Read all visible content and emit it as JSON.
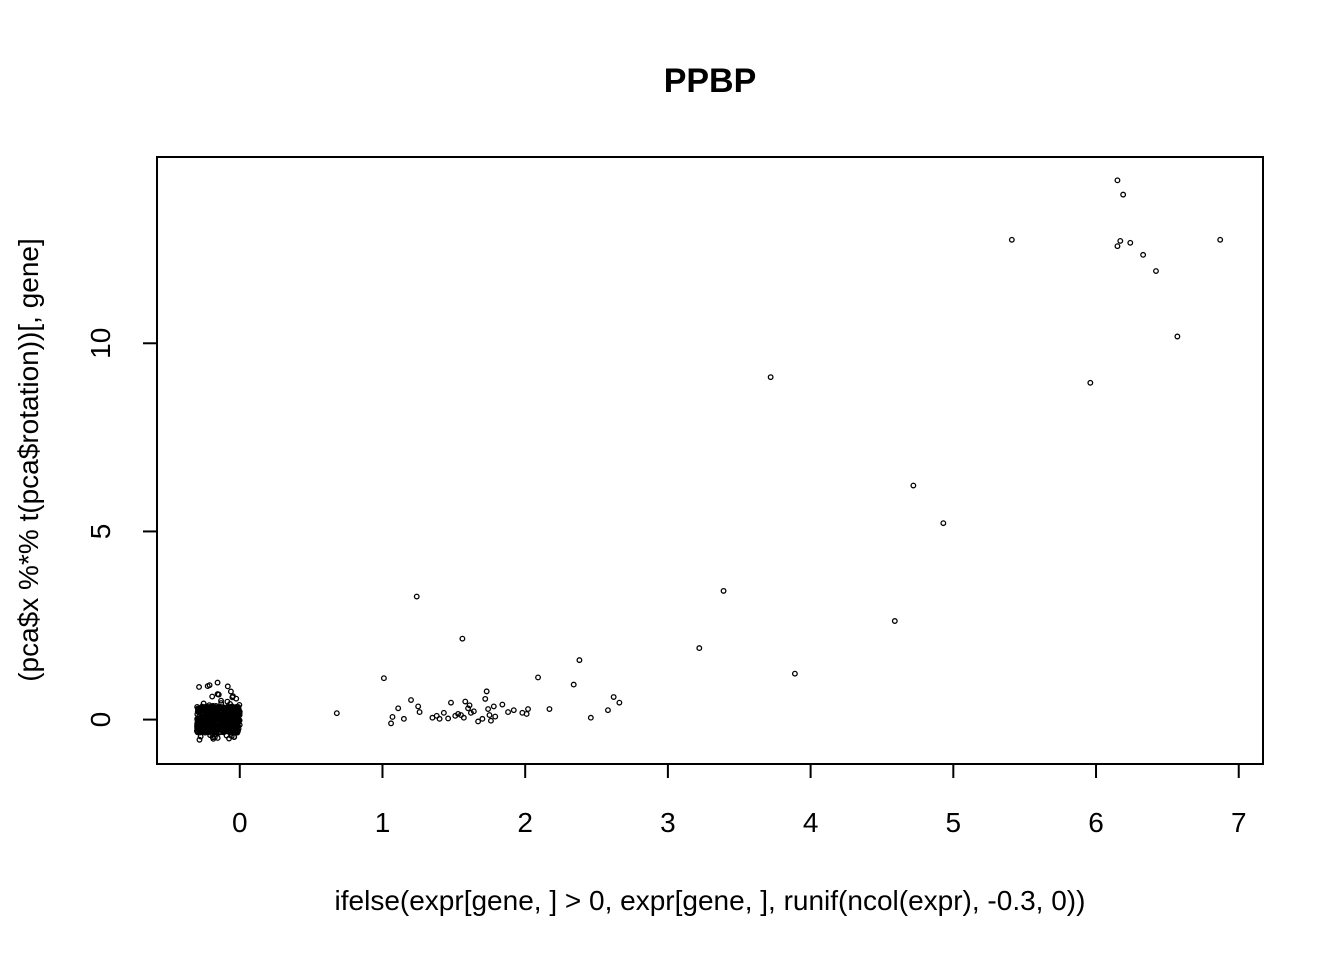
{
  "chart_data": {
    "type": "scatter",
    "title": "PPBP",
    "xlabel": "ifelse(expr[gene, ] > 0, expr[gene, ], runif(ncol(expr), -0.3, 0))",
    "ylabel": "(pca$x %*% t(pca$rotation))[, gene]",
    "xlim": [
      -0.58,
      7.17
    ],
    "ylim": [
      -1.18,
      14.95
    ],
    "x_ticks": [
      "0",
      "1",
      "2",
      "3",
      "4",
      "5",
      "6",
      "7"
    ],
    "y_ticks": [
      "0",
      "5",
      "10"
    ],
    "grid": false,
    "legend": "none",
    "point_style": "open-circle",
    "point_color": "#000000",
    "cluster_near_zero": {
      "x_range": [
        -0.3,
        0
      ],
      "y_range": [
        -0.55,
        1.0
      ],
      "approx_count": 600
    },
    "points": [
      {
        "x": 0.68,
        "y": 0.17
      },
      {
        "x": 1.01,
        "y": 1.1
      },
      {
        "x": 1.06,
        "y": -0.1
      },
      {
        "x": 1.07,
        "y": 0.07
      },
      {
        "x": 1.11,
        "y": 0.3
      },
      {
        "x": 1.15,
        "y": 0.02
      },
      {
        "x": 1.2,
        "y": 0.52
      },
      {
        "x": 1.24,
        "y": 3.27
      },
      {
        "x": 1.25,
        "y": 0.35
      },
      {
        "x": 1.26,
        "y": 0.2
      },
      {
        "x": 1.35,
        "y": 0.05
      },
      {
        "x": 1.38,
        "y": 0.1
      },
      {
        "x": 1.4,
        "y": 0.02
      },
      {
        "x": 1.43,
        "y": 0.18
      },
      {
        "x": 1.46,
        "y": 0.03
      },
      {
        "x": 1.48,
        "y": 0.45
      },
      {
        "x": 1.51,
        "y": 0.1
      },
      {
        "x": 1.53,
        "y": 0.15
      },
      {
        "x": 1.55,
        "y": 0.12
      },
      {
        "x": 1.56,
        "y": 2.15
      },
      {
        "x": 1.57,
        "y": 0.05
      },
      {
        "x": 1.58,
        "y": 0.48
      },
      {
        "x": 1.6,
        "y": 0.3
      },
      {
        "x": 1.61,
        "y": 0.38
      },
      {
        "x": 1.62,
        "y": 0.18
      },
      {
        "x": 1.64,
        "y": 0.22
      },
      {
        "x": 1.67,
        "y": -0.05
      },
      {
        "x": 1.7,
        "y": 0.02
      },
      {
        "x": 1.72,
        "y": 0.55
      },
      {
        "x": 1.73,
        "y": 0.75
      },
      {
        "x": 1.74,
        "y": 0.28
      },
      {
        "x": 1.75,
        "y": 0.12
      },
      {
        "x": 1.76,
        "y": -0.03
      },
      {
        "x": 1.78,
        "y": 0.35
      },
      {
        "x": 1.79,
        "y": 0.08
      },
      {
        "x": 1.84,
        "y": 0.4
      },
      {
        "x": 1.88,
        "y": 0.2
      },
      {
        "x": 1.92,
        "y": 0.25
      },
      {
        "x": 1.98,
        "y": 0.18
      },
      {
        "x": 2.01,
        "y": 0.15
      },
      {
        "x": 2.02,
        "y": 0.28
      },
      {
        "x": 2.09,
        "y": 1.12
      },
      {
        "x": 2.17,
        "y": 0.28
      },
      {
        "x": 2.34,
        "y": 0.93
      },
      {
        "x": 2.38,
        "y": 1.58
      },
      {
        "x": 2.46,
        "y": 0.05
      },
      {
        "x": 2.58,
        "y": 0.25
      },
      {
        "x": 2.62,
        "y": 0.6
      },
      {
        "x": 2.66,
        "y": 0.45
      },
      {
        "x": 3.22,
        "y": 1.9
      },
      {
        "x": 3.39,
        "y": 3.42
      },
      {
        "x": 3.72,
        "y": 9.1
      },
      {
        "x": 3.89,
        "y": 1.22
      },
      {
        "x": 4.59,
        "y": 2.62
      },
      {
        "x": 4.72,
        "y": 6.22
      },
      {
        "x": 4.93,
        "y": 5.22
      },
      {
        "x": 5.41,
        "y": 12.75
      },
      {
        "x": 5.96,
        "y": 8.95
      },
      {
        "x": 6.15,
        "y": 12.58
      },
      {
        "x": 6.15,
        "y": 14.33
      },
      {
        "x": 6.17,
        "y": 12.72
      },
      {
        "x": 6.19,
        "y": 13.95
      },
      {
        "x": 6.24,
        "y": 12.67
      },
      {
        "x": 6.33,
        "y": 12.35
      },
      {
        "x": 6.42,
        "y": 11.92
      },
      {
        "x": 6.57,
        "y": 10.18
      },
      {
        "x": 6.87,
        "y": 12.75
      }
    ]
  }
}
